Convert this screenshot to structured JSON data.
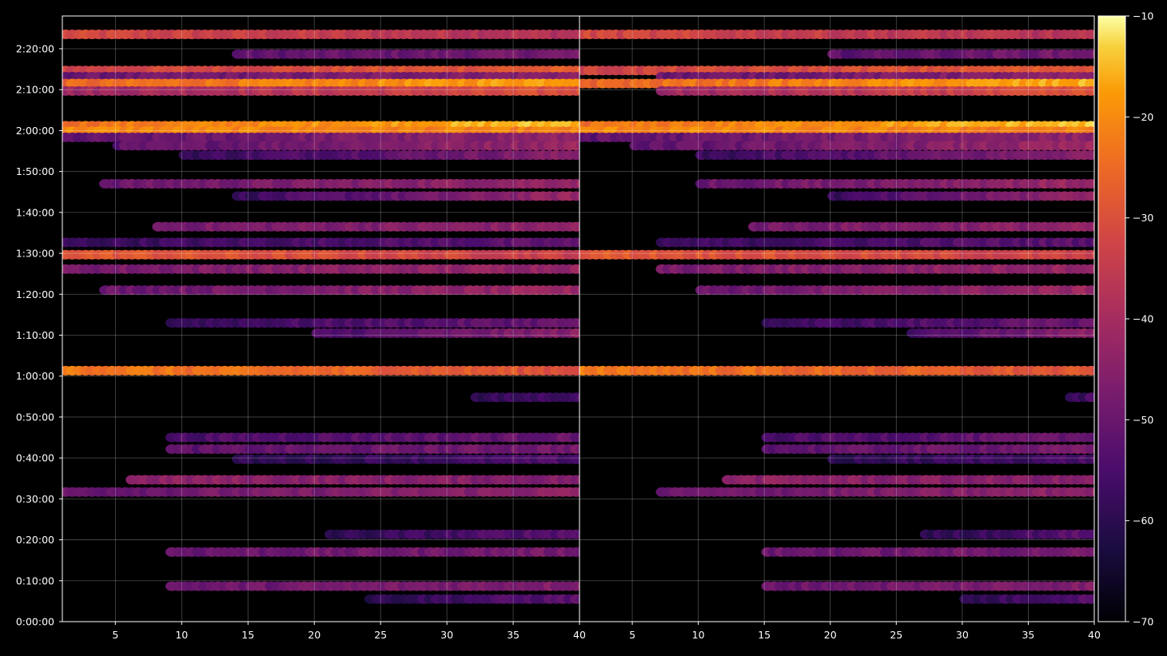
{
  "chart_data": {
    "type": "heatmap",
    "panels": [
      {
        "name": "",
        "xlim": [
          1,
          40
        ],
        "xticks": [
          5,
          10,
          15,
          20,
          25,
          30,
          35
        ],
        "xtick_labels": [
          "5",
          "10",
          "15",
          "20",
          "25",
          "30",
          "35"
        ],
        "start_x_for_bands": 1
      },
      {
        "name": "",
        "xlim": [
          1,
          40
        ],
        "xticks": [
          5,
          10,
          15,
          20,
          25,
          30,
          35,
          40
        ],
        "xtick_labels": [
          "5",
          "10",
          "15",
          "20",
          "25",
          "30",
          "35",
          "40"
        ],
        "start_x_for_bands": 1
      }
    ],
    "x_end_label": "40",
    "ylim_seconds": [
      0,
      8880
    ],
    "yticks_seconds": [
      0,
      600,
      1200,
      1800,
      2400,
      3000,
      3600,
      4200,
      4800,
      5400,
      6000,
      6600,
      7200,
      7800,
      8400
    ],
    "ytick_labels": [
      "0:00:00",
      "0:10:00",
      "0:20:00",
      "0:30:00",
      "0:40:00",
      "0:50:00",
      "1:00:00",
      "1:10:00",
      "1:20:00",
      "1:30:00",
      "1:40:00",
      "1:50:00",
      "2:00:00",
      "2:10:00",
      "2:20:00"
    ],
    "colorbar": {
      "range": [
        -70,
        -10
      ],
      "ticks": [
        -10,
        -20,
        -30,
        -40,
        -50,
        -60,
        -70
      ],
      "tick_labels": [
        "−10",
        "−20",
        "−30",
        "−40",
        "−50",
        "−60",
        "−70"
      ],
      "colormap": "inferno"
    },
    "grid": true,
    "bands_description": "rows of values in dB, time (seconds) vs. channel index",
    "bands": [
      {
        "t": 8610,
        "v0": -32,
        "v1": -38,
        "span": [
          1,
          40
        ]
      },
      {
        "t": 8320,
        "v0": -52,
        "v1": -48,
        "span": [
          14,
          40
        ]
      },
      {
        "t": 8080,
        "v0": -33,
        "v1": -28,
        "span": [
          1,
          40
        ]
      },
      {
        "t": 7990,
        "v0": -50,
        "v1": -45,
        "span": [
          1,
          40
        ]
      },
      {
        "t": 7890,
        "v0": -26,
        "v1": -16,
        "span": [
          1,
          40
        ]
      },
      {
        "t": 7780,
        "v0": -42,
        "v1": -30,
        "span": [
          1,
          40
        ]
      },
      {
        "t": 7270,
        "v0": -24,
        "v1": -14,
        "span": [
          1,
          40
        ]
      },
      {
        "t": 7190,
        "v0": -20,
        "v1": -22,
        "span": [
          1,
          40
        ]
      },
      {
        "t": 7100,
        "v0": -52,
        "v1": -44,
        "span": [
          1,
          40
        ]
      },
      {
        "t": 6980,
        "v0": -52,
        "v1": -42,
        "span": [
          5,
          40
        ]
      },
      {
        "t": 6840,
        "v0": -58,
        "v1": -45,
        "span": [
          10,
          40
        ]
      },
      {
        "t": 6420,
        "v0": -50,
        "v1": -42,
        "span": [
          4,
          40
        ]
      },
      {
        "t": 6240,
        "v0": -58,
        "v1": -42,
        "span": [
          14,
          40
        ]
      },
      {
        "t": 5790,
        "v0": -48,
        "v1": -44,
        "span": [
          8,
          40
        ]
      },
      {
        "t": 5560,
        "v0": -58,
        "v1": -52,
        "span": [
          1,
          40
        ]
      },
      {
        "t": 5380,
        "v0": -28,
        "v1": -34,
        "span": [
          1,
          40
        ]
      },
      {
        "t": 5170,
        "v0": -48,
        "v1": -42,
        "span": [
          1,
          40
        ]
      },
      {
        "t": 4860,
        "v0": -50,
        "v1": -42,
        "span": [
          4,
          40
        ]
      },
      {
        "t": 4380,
        "v0": -58,
        "v1": -50,
        "span": [
          9,
          40
        ]
      },
      {
        "t": 4230,
        "v0": -55,
        "v1": -45,
        "span": [
          20,
          40
        ]
      },
      {
        "t": 3680,
        "v0": -22,
        "v1": -30,
        "span": [
          1,
          40
        ]
      },
      {
        "t": 3290,
        "v0": -60,
        "v1": -55,
        "span": [
          32,
          40
        ]
      },
      {
        "t": 2700,
        "v0": -55,
        "v1": -50,
        "span": [
          9,
          40
        ]
      },
      {
        "t": 2530,
        "v0": -52,
        "v1": -48,
        "span": [
          9,
          40
        ]
      },
      {
        "t": 2380,
        "v0": -60,
        "v1": -55,
        "span": [
          14,
          40
        ]
      },
      {
        "t": 2080,
        "v0": -44,
        "v1": -46,
        "span": [
          6,
          40
        ]
      },
      {
        "t": 1900,
        "v0": -50,
        "v1": -44,
        "span": [
          1,
          40
        ]
      },
      {
        "t": 1280,
        "v0": -60,
        "v1": -52,
        "span": [
          21,
          40
        ]
      },
      {
        "t": 1020,
        "v0": -50,
        "v1": -48,
        "span": [
          9,
          40
        ]
      },
      {
        "t": 520,
        "v0": -50,
        "v1": -46,
        "span": [
          9,
          40
        ]
      },
      {
        "t": 330,
        "v0": -60,
        "v1": -52,
        "span": [
          24,
          40
        ]
      }
    ]
  }
}
